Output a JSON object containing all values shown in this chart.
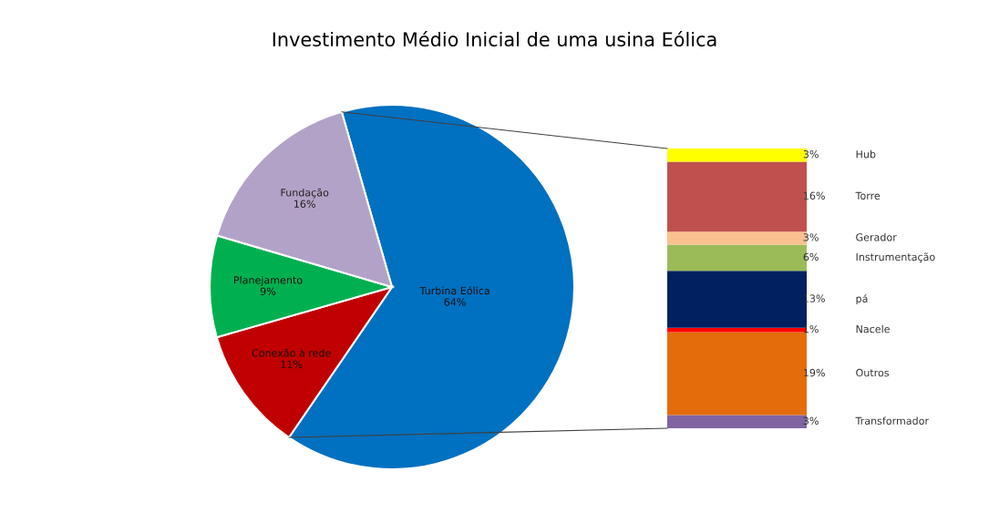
{
  "chart_data": [
    {
      "type": "pie",
      "title": "Investimento Médio Inicial de uma usina Eólica",
      "categories": [
        "Turbina Eólica",
        "Conexão à rede",
        "Planejamento",
        "Fundação"
      ],
      "values": [
        64,
        11,
        9,
        16
      ],
      "value_labels": [
        "64%",
        "11%",
        "9%",
        "16%"
      ],
      "colors": [
        "#0070c0",
        "#c00000",
        "#00b050",
        "#b3a2c7"
      ],
      "legend": false
    },
    {
      "type": "bar",
      "stacked": true,
      "categories": [
        null
      ],
      "ylim": [
        0,
        64
      ],
      "tick_labels": false,
      "legend": false,
      "series": [
        {
          "name": "Transformador",
          "color": "#8064a2",
          "values": [
            3
          ],
          "value_labels": [
            "3%"
          ]
        },
        {
          "name": "Outros",
          "color": "#e46c0a",
          "values": [
            19
          ],
          "value_labels": [
            "19%"
          ]
        },
        {
          "name": "Nacele",
          "color": "#ff0000",
          "values": [
            1
          ],
          "value_labels": [
            "1%"
          ]
        },
        {
          "name": "pá",
          "color": "#002060",
          "values": [
            13
          ],
          "value_labels": [
            "13%"
          ]
        },
        {
          "name": "Instrumentação",
          "color": "#9bbb59",
          "values": [
            6
          ],
          "value_labels": [
            "6%"
          ]
        },
        {
          "name": "Gerador",
          "color": "#fac090",
          "values": [
            3
          ],
          "value_labels": [
            "3%"
          ]
        },
        {
          "name": "Torre",
          "color": "#c0504d",
          "values": [
            16
          ],
          "value_labels": [
            "16%"
          ]
        },
        {
          "name": "Hub",
          "color": "#ffff00",
          "values": [
            3
          ],
          "value_labels": [
            "3%"
          ]
        }
      ]
    }
  ]
}
